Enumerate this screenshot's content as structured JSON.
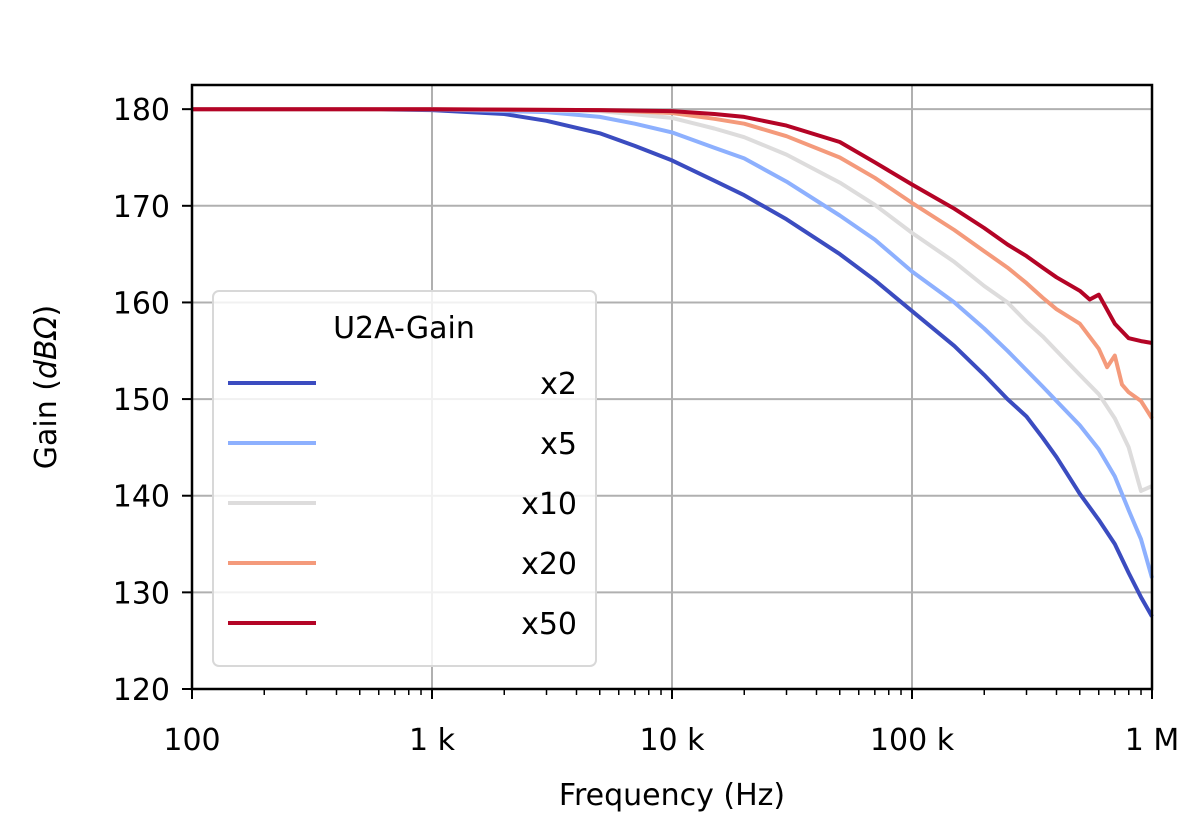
{
  "chart_data": {
    "type": "line",
    "xlabel": "Frequency (Hz)",
    "ylabel_main": "Gain (",
    "ylabel_unit": "dBΩ",
    "ylabel_close": ")",
    "x_scale": "log",
    "xlim": [
      100,
      1000000
    ],
    "ylim": [
      120,
      182.5
    ],
    "grid": true,
    "x_ticks": [
      {
        "value": 100,
        "label": "100"
      },
      {
        "value": 1000,
        "label": "1 k"
      },
      {
        "value": 10000,
        "label": "10 k"
      },
      {
        "value": 100000,
        "label": "100 k"
      },
      {
        "value": 1000000,
        "label": "1 M"
      }
    ],
    "y_ticks": [
      {
        "value": 120,
        "label": "120"
      },
      {
        "value": 130,
        "label": "130"
      },
      {
        "value": 140,
        "label": "140"
      },
      {
        "value": 150,
        "label": "150"
      },
      {
        "value": 160,
        "label": "160"
      },
      {
        "value": 170,
        "label": "170"
      },
      {
        "value": 180,
        "label": "180"
      }
    ],
    "legend": {
      "title": "U2A-Gain",
      "position": "lower-left"
    },
    "series": [
      {
        "name": "x2",
        "color": "#3b4cc0",
        "points": [
          [
            100,
            180
          ],
          [
            500,
            180
          ],
          [
            1000,
            179.9
          ],
          [
            2000,
            179.5
          ],
          [
            3000,
            178.8
          ],
          [
            5000,
            177.5
          ],
          [
            7000,
            176.2
          ],
          [
            10000,
            174.7
          ],
          [
            15000,
            172.6
          ],
          [
            20000,
            171.1
          ],
          [
            30000,
            168.6
          ],
          [
            50000,
            165
          ],
          [
            70000,
            162.3
          ],
          [
            100000,
            159.1
          ],
          [
            150000,
            155.5
          ],
          [
            200000,
            152.5
          ],
          [
            250000,
            150
          ],
          [
            300000,
            148.2
          ],
          [
            350000,
            146
          ],
          [
            400000,
            144
          ],
          [
            450000,
            142
          ],
          [
            500000,
            140.2
          ],
          [
            600000,
            137.5
          ],
          [
            700000,
            135
          ],
          [
            800000,
            132
          ],
          [
            900000,
            129.5
          ],
          [
            1000000,
            127.5
          ]
        ]
      },
      {
        "name": "x5",
        "color": "#8db0fe",
        "points": [
          [
            100,
            180
          ],
          [
            1000,
            180
          ],
          [
            3000,
            179.7
          ],
          [
            5000,
            179.2
          ],
          [
            7000,
            178.5
          ],
          [
            10000,
            177.6
          ],
          [
            15000,
            176
          ],
          [
            20000,
            174.9
          ],
          [
            30000,
            172.5
          ],
          [
            50000,
            169
          ],
          [
            70000,
            166.5
          ],
          [
            100000,
            163.2
          ],
          [
            150000,
            160
          ],
          [
            200000,
            157.3
          ],
          [
            250000,
            155
          ],
          [
            300000,
            153
          ],
          [
            350000,
            151.3
          ],
          [
            400000,
            149.8
          ],
          [
            500000,
            147.3
          ],
          [
            600000,
            144.8
          ],
          [
            700000,
            142
          ],
          [
            800000,
            138.5
          ],
          [
            900000,
            135.5
          ],
          [
            1000000,
            131.5
          ]
        ]
      },
      {
        "name": "x10",
        "color": "#dddcdc",
        "points": [
          [
            100,
            180
          ],
          [
            1000,
            180
          ],
          [
            5000,
            179.8
          ],
          [
            10000,
            179.1
          ],
          [
            15000,
            178
          ],
          [
            20000,
            177.1
          ],
          [
            30000,
            175.3
          ],
          [
            50000,
            172.4
          ],
          [
            70000,
            170.1
          ],
          [
            100000,
            167.2
          ],
          [
            150000,
            164.2
          ],
          [
            200000,
            161.7
          ],
          [
            250000,
            160
          ],
          [
            300000,
            158
          ],
          [
            350000,
            156.5
          ],
          [
            400000,
            155
          ],
          [
            500000,
            152.5
          ],
          [
            600000,
            150.5
          ],
          [
            700000,
            148
          ],
          [
            800000,
            145
          ],
          [
            900000,
            140.5
          ],
          [
            1000000,
            141
          ]
        ]
      },
      {
        "name": "x20",
        "color": "#f49a7b",
        "points": [
          [
            100,
            180
          ],
          [
            1000,
            180
          ],
          [
            5000,
            179.9
          ],
          [
            10000,
            179.6
          ],
          [
            15000,
            179
          ],
          [
            20000,
            178.5
          ],
          [
            30000,
            177.2
          ],
          [
            50000,
            175
          ],
          [
            70000,
            172.9
          ],
          [
            100000,
            170.3
          ],
          [
            150000,
            167.5
          ],
          [
            200000,
            165.3
          ],
          [
            250000,
            163.6
          ],
          [
            300000,
            162
          ],
          [
            350000,
            160.5
          ],
          [
            400000,
            159.3
          ],
          [
            500000,
            157.8
          ],
          [
            600000,
            155.2
          ],
          [
            650000,
            153.3
          ],
          [
            700000,
            154.5
          ],
          [
            750000,
            151.5
          ],
          [
            800000,
            150.7
          ],
          [
            900000,
            149.8
          ],
          [
            1000000,
            148
          ]
        ]
      },
      {
        "name": "x50",
        "color": "#b40426",
        "points": [
          [
            100,
            180
          ],
          [
            1000,
            180
          ],
          [
            5000,
            179.9
          ],
          [
            10000,
            179.8
          ],
          [
            15000,
            179.5
          ],
          [
            20000,
            179.2
          ],
          [
            30000,
            178.3
          ],
          [
            50000,
            176.6
          ],
          [
            70000,
            174.5
          ],
          [
            100000,
            172.2
          ],
          [
            150000,
            169.7
          ],
          [
            200000,
            167.7
          ],
          [
            250000,
            166
          ],
          [
            300000,
            164.8
          ],
          [
            350000,
            163.6
          ],
          [
            400000,
            162.6
          ],
          [
            500000,
            161.2
          ],
          [
            550000,
            160.3
          ],
          [
            600000,
            160.8
          ],
          [
            700000,
            157.8
          ],
          [
            800000,
            156.3
          ],
          [
            900000,
            156
          ],
          [
            1000000,
            155.8
          ]
        ]
      }
    ]
  }
}
